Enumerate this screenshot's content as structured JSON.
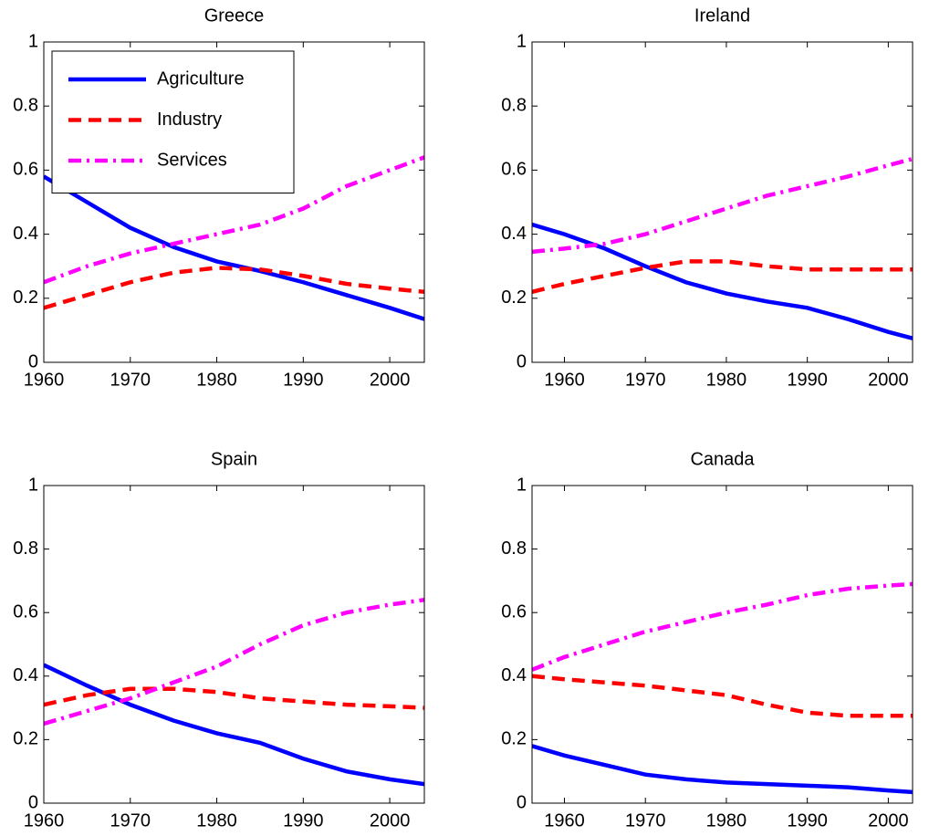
{
  "chart_data": [
    {
      "type": "line",
      "title": "Greece",
      "x": [
        1960,
        1965,
        1970,
        1975,
        1980,
        1985,
        1990,
        1995,
        2000,
        2004
      ],
      "xlim": [
        1960,
        2004
      ],
      "xticks": [
        1960,
        1970,
        1980,
        1990,
        2000
      ],
      "ylim": [
        0,
        1
      ],
      "yticks": [
        0,
        0.2,
        0.4,
        0.6,
        0.8,
        1
      ],
      "legend": "upper left",
      "series": [
        {
          "name": "Agriculture",
          "color": "#0000ff",
          "style": "solid",
          "values": [
            0.58,
            0.5,
            0.42,
            0.36,
            0.315,
            0.285,
            0.25,
            0.21,
            0.17,
            0.135
          ]
        },
        {
          "name": "Industry",
          "color": "#ff0000",
          "style": "dashed",
          "values": [
            0.17,
            0.21,
            0.25,
            0.28,
            0.295,
            0.29,
            0.27,
            0.245,
            0.23,
            0.22
          ]
        },
        {
          "name": "Services",
          "color": "#ff00ff",
          "style": "dashdot",
          "values": [
            0.25,
            0.3,
            0.34,
            0.37,
            0.4,
            0.43,
            0.48,
            0.55,
            0.6,
            0.64
          ]
        }
      ]
    },
    {
      "type": "line",
      "title": "Ireland",
      "x": [
        1956,
        1960,
        1965,
        1970,
        1975,
        1980,
        1985,
        1990,
        1995,
        2000,
        2003
      ],
      "xlim": [
        1956,
        2003
      ],
      "xticks": [
        1960,
        1970,
        1980,
        1990,
        2000
      ],
      "ylim": [
        0,
        1
      ],
      "yticks": [
        0,
        0.2,
        0.4,
        0.6,
        0.8,
        1
      ],
      "series": [
        {
          "color": "#0000ff",
          "style": "solid",
          "values": [
            0.43,
            0.4,
            0.355,
            0.3,
            0.25,
            0.215,
            0.19,
            0.17,
            0.135,
            0.095,
            0.075
          ]
        },
        {
          "color": "#ff0000",
          "style": "dashed",
          "values": [
            0.22,
            0.245,
            0.27,
            0.295,
            0.315,
            0.315,
            0.3,
            0.29,
            0.29,
            0.29,
            0.29
          ]
        },
        {
          "color": "#ff00ff",
          "style": "dashdot",
          "values": [
            0.345,
            0.355,
            0.37,
            0.4,
            0.44,
            0.48,
            0.52,
            0.55,
            0.58,
            0.615,
            0.635
          ]
        }
      ]
    },
    {
      "type": "line",
      "title": "Spain",
      "x": [
        1960,
        1965,
        1970,
        1975,
        1980,
        1985,
        1990,
        1995,
        2000,
        2004
      ],
      "xlim": [
        1960,
        2004
      ],
      "xticks": [
        1960,
        1970,
        1980,
        1990,
        2000
      ],
      "ylim": [
        0,
        1
      ],
      "yticks": [
        0,
        0.2,
        0.4,
        0.6,
        0.8,
        1
      ],
      "series": [
        {
          "color": "#0000ff",
          "style": "solid",
          "values": [
            0.435,
            0.37,
            0.31,
            0.26,
            0.22,
            0.19,
            0.14,
            0.1,
            0.075,
            0.06
          ]
        },
        {
          "color": "#ff0000",
          "style": "dashed",
          "values": [
            0.31,
            0.34,
            0.36,
            0.36,
            0.35,
            0.33,
            0.32,
            0.31,
            0.305,
            0.3
          ]
        },
        {
          "color": "#ff00ff",
          "style": "dashdot",
          "values": [
            0.25,
            0.29,
            0.33,
            0.38,
            0.43,
            0.5,
            0.56,
            0.6,
            0.625,
            0.64
          ]
        }
      ]
    },
    {
      "type": "line",
      "title": "Canada",
      "x": [
        1956,
        1960,
        1965,
        1970,
        1975,
        1980,
        1985,
        1990,
        1995,
        2000,
        2003
      ],
      "xlim": [
        1956,
        2003
      ],
      "xticks": [
        1960,
        1970,
        1980,
        1990,
        2000
      ],
      "ylim": [
        0,
        1
      ],
      "yticks": [
        0,
        0.2,
        0.4,
        0.6,
        0.8,
        1
      ],
      "series": [
        {
          "color": "#0000ff",
          "style": "solid",
          "values": [
            0.18,
            0.15,
            0.12,
            0.09,
            0.075,
            0.065,
            0.06,
            0.055,
            0.05,
            0.04,
            0.035
          ]
        },
        {
          "color": "#ff0000",
          "style": "dashed",
          "values": [
            0.4,
            0.39,
            0.38,
            0.37,
            0.355,
            0.34,
            0.31,
            0.285,
            0.275,
            0.275,
            0.275
          ]
        },
        {
          "color": "#ff00ff",
          "style": "dashdot",
          "values": [
            0.42,
            0.46,
            0.5,
            0.54,
            0.57,
            0.6,
            0.625,
            0.655,
            0.675,
            0.685,
            0.69
          ]
        }
      ]
    }
  ]
}
